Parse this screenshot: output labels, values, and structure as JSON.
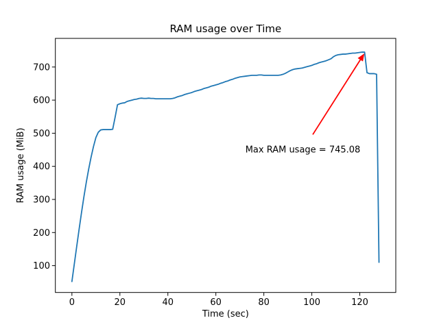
{
  "chart_data": {
    "type": "line",
    "title": "RAM usage over Time",
    "xlabel": "Time (sec)",
    "ylabel": "RAM usage (MiB)",
    "xlim": [
      -6.9,
      135.0
    ],
    "ylim": [
      19,
      786.5
    ],
    "xticks": [
      0,
      20,
      40,
      60,
      80,
      100,
      120
    ],
    "yticks": [
      100,
      200,
      300,
      400,
      500,
      600,
      700
    ],
    "grid": false,
    "legend": null,
    "line_color": "#1f77b4",
    "series": [
      {
        "name": "RAM usage",
        "x": [
          0,
          1,
          2,
          3,
          4,
          5,
          6,
          7,
          8,
          9,
          10,
          11,
          12,
          13,
          14,
          15,
          16,
          17,
          18,
          19,
          20,
          21,
          22,
          23,
          24,
          25,
          26,
          27,
          28,
          29,
          30,
          31,
          32,
          33,
          34,
          35,
          36,
          37,
          38,
          39,
          40,
          41,
          42,
          43,
          44,
          45,
          46,
          47,
          48,
          49,
          50,
          51,
          52,
          53,
          54,
          55,
          56,
          57,
          58,
          59,
          60,
          61,
          62,
          63,
          64,
          65,
          66,
          67,
          68,
          69,
          70,
          71,
          72,
          73,
          74,
          75,
          76,
          77,
          78,
          79,
          80,
          81,
          82,
          83,
          84,
          85,
          86,
          87,
          88,
          89,
          90,
          91,
          92,
          93,
          94,
          95,
          96,
          97,
          98,
          99,
          100,
          101,
          102,
          103,
          104,
          105,
          106,
          107,
          108,
          109,
          110,
          111,
          112,
          113,
          114,
          115,
          116,
          117,
          118,
          119,
          120,
          121,
          122,
          123,
          124,
          125,
          126,
          127,
          128
        ],
        "y": [
          52,
          105,
          158,
          210,
          260,
          308,
          352,
          392,
          428,
          460,
          487,
          503,
          510,
          511,
          511,
          511,
          511,
          512,
          548,
          586,
          589,
          591,
          592,
          596,
          598,
          600,
          602,
          603,
          605,
          606,
          605,
          605,
          606,
          605,
          605,
          604,
          604,
          604,
          604,
          604,
          604,
          604,
          605,
          607,
          610,
          612,
          614,
          617,
          619,
          621,
          623,
          626,
          628,
          630,
          632,
          635,
          637,
          639,
          642,
          644,
          646,
          648,
          651,
          653,
          656,
          658,
          661,
          663,
          666,
          668,
          670,
          671,
          672,
          673,
          674,
          675,
          675,
          675,
          676,
          676,
          675,
          675,
          675,
          675,
          675,
          675,
          675,
          676,
          678,
          681,
          685,
          689,
          692,
          694,
          695,
          696,
          697,
          699,
          701,
          703,
          705,
          708,
          710,
          713,
          715,
          717,
          719,
          722,
          725,
          731,
          735,
          737,
          738,
          739,
          739,
          740,
          741,
          742,
          742,
          743,
          744,
          745,
          745.08,
          683,
          680,
          680,
          680,
          678,
          110
        ]
      }
    ],
    "annotation": {
      "text": "Max RAM usage = 745.08",
      "color": "#ff0000",
      "point": [
        122,
        745.08
      ],
      "text_pos": [
        72.3,
        442
      ],
      "arrow_tail": [
        100.4,
        496
      ],
      "arrow_head": [
        121.9,
        741
      ]
    },
    "max_value": 745.08
  }
}
